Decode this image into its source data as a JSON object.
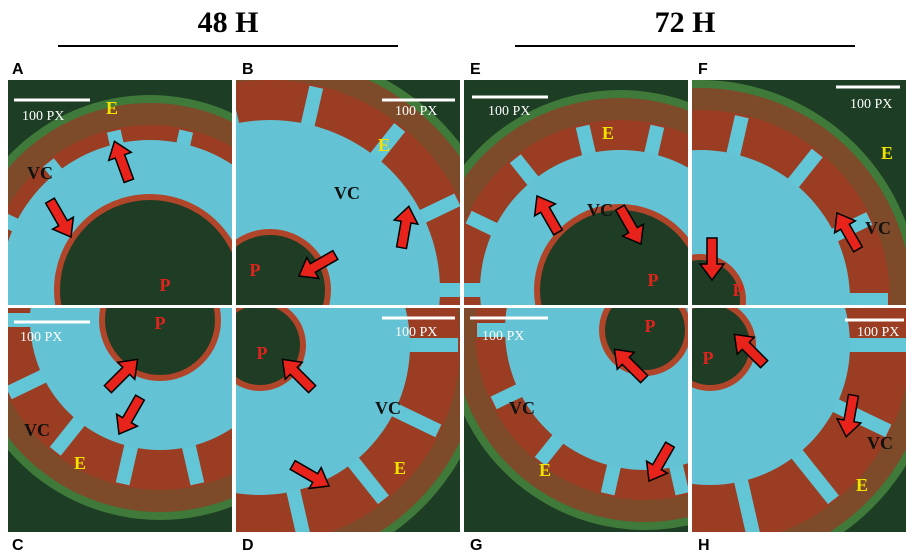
{
  "headers": [
    "48 H",
    "72 H"
  ],
  "panels": [
    {
      "letter": "A",
      "scale": "100 PX",
      "labels": [
        "E",
        "VC",
        "P"
      ]
    },
    {
      "letter": "B",
      "scale": "100 PX",
      "labels": [
        "E",
        "VC",
        "P"
      ]
    },
    {
      "letter": "C",
      "scale": "100 PX",
      "labels": [
        "P",
        "VC",
        "E"
      ]
    },
    {
      "letter": "D",
      "scale": "100 PX",
      "labels": [
        "P",
        "VC",
        "E"
      ]
    },
    {
      "letter": "E",
      "scale": "100 PX",
      "labels": [
        "E",
        "VC",
        "P"
      ]
    },
    {
      "letter": "F",
      "scale": "100 PX",
      "labels": [
        "E",
        "VC",
        "P"
      ]
    },
    {
      "letter": "G",
      "scale": "100 PX",
      "labels": [
        "P",
        "VC",
        "E"
      ]
    },
    {
      "letter": "H",
      "scale": "100 PX",
      "labels": [
        "P",
        "VC",
        "E"
      ]
    }
  ]
}
